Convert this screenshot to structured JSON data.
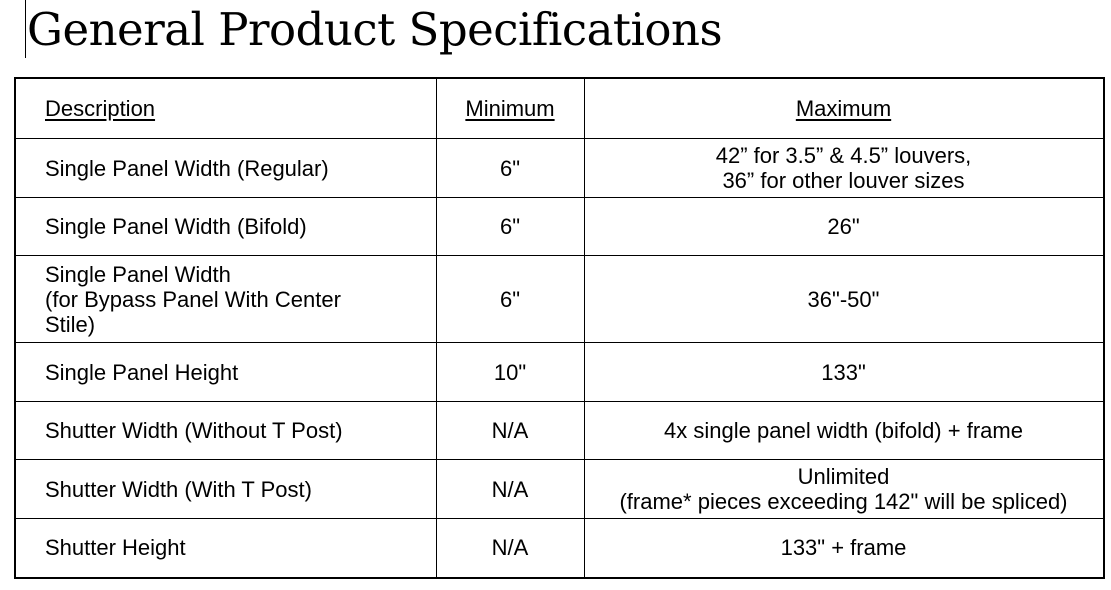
{
  "title": "General Product Specifications",
  "table": {
    "headers": [
      "Description",
      "Minimum",
      "Maximum"
    ],
    "rows": [
      {
        "description": "Single Panel Width (Regular)",
        "minimum": "6\"",
        "maximum": [
          "42” for 3.5” & 4.5” louvers,",
          "36” for other louver sizes"
        ]
      },
      {
        "description": "Single Panel Width (Bifold)",
        "minimum": "6\"",
        "maximum": [
          "26\""
        ]
      },
      {
        "description": "Single Panel Width (for Bypass Panel With Center Stile)",
        "description_lines": [
          "Single Panel Width",
          "(for Bypass Panel With Center",
          "Stile)"
        ],
        "minimum": "6\"",
        "maximum": [
          "36\"-50\""
        ]
      },
      {
        "description": "Single Panel Height",
        "minimum": "10\"",
        "maximum": [
          "133\""
        ]
      },
      {
        "description": "Shutter Width (Without T Post)",
        "minimum": "N/A",
        "maximum": [
          "4x single panel width (bifold) + frame"
        ]
      },
      {
        "description": "Shutter Width (With T Post)",
        "minimum": "N/A",
        "maximum": [
          "Unlimited",
          "(frame* pieces exceeding 142\" will be spliced)"
        ]
      },
      {
        "description": "Shutter Height",
        "minimum": "N/A",
        "maximum": [
          "133\" + frame"
        ]
      }
    ]
  }
}
